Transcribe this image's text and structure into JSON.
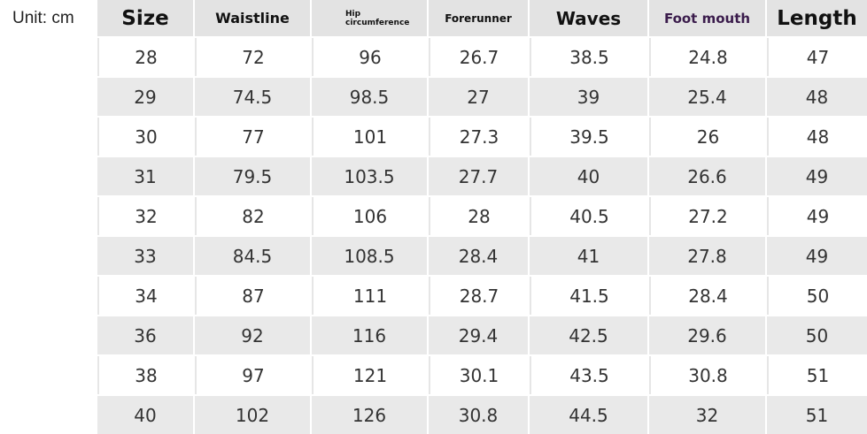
{
  "unit_label": "Unit: cm",
  "table": {
    "header": [
      "Size",
      "Waistline",
      "Hip circumference",
      "Forerunner",
      "Waves",
      "Foot mouth",
      "Length"
    ],
    "rows": [
      [
        28,
        72,
        96,
        26.7,
        38.5,
        24.8,
        47
      ],
      [
        29,
        74.5,
        98.5,
        27,
        39,
        25.4,
        48
      ],
      [
        30,
        77,
        101,
        27.3,
        39.5,
        26,
        48
      ],
      [
        31,
        79.5,
        103.5,
        27.7,
        40,
        26.6,
        49
      ],
      [
        32,
        82,
        106,
        28,
        40.5,
        27.2,
        49
      ],
      [
        33,
        84.5,
        108.5,
        28.4,
        41,
        27.8,
        49
      ],
      [
        34,
        87,
        111,
        28.7,
        41.5,
        28.4,
        50
      ],
      [
        36,
        92,
        116,
        29.4,
        42.5,
        29.6,
        50
      ],
      [
        38,
        97,
        121,
        30.1,
        43.5,
        30.8,
        51
      ],
      [
        40,
        102,
        126,
        30.8,
        44.5,
        32,
        51
      ]
    ]
  }
}
